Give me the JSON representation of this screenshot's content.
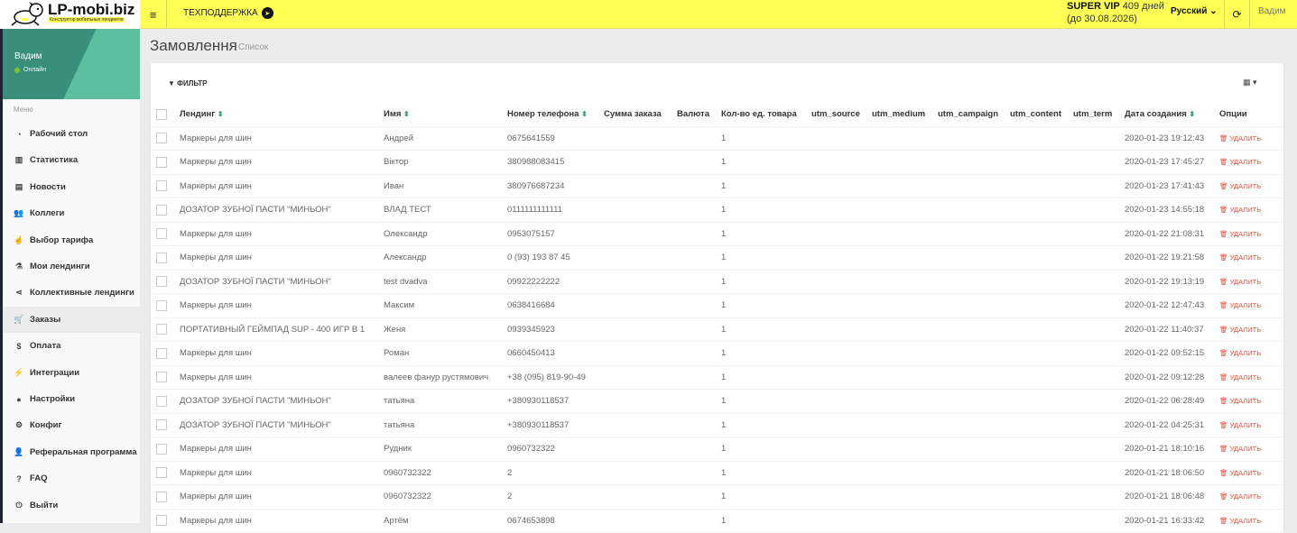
{
  "topbar": {
    "logo_title": "LP-mobi.biz",
    "logo_subtitle": "Конструктор мобильных лендингов",
    "support": "ТЕХПОДДЕРЖКА",
    "plan": "SUPER VIP",
    "days": "409 дней",
    "until": "(до 30.08.2026)",
    "language": "Русский",
    "user": "Вадим",
    "accent": "#ffff55"
  },
  "sidebar": {
    "user_name": "Вадим",
    "status": "Онлайн",
    "menu_label": "Меню",
    "items": [
      {
        "label": "Рабочий стол",
        "icon": "dashboard-icon"
      },
      {
        "label": "Статистика",
        "icon": "bar-chart-icon"
      },
      {
        "label": "Новости",
        "icon": "newspaper-icon"
      },
      {
        "label": "Коллеги",
        "icon": "users-icon"
      },
      {
        "label": "Выбор тарифа",
        "icon": "hand-pointer-icon"
      },
      {
        "label": "Мои лендинги",
        "icon": "flask-icon"
      },
      {
        "label": "Коллективные лендинги",
        "icon": "share-icon"
      },
      {
        "label": "Заказы",
        "icon": "cart-icon",
        "active": true
      },
      {
        "label": "Оплата",
        "icon": "dollar-icon"
      },
      {
        "label": "Интеграции",
        "icon": "plug-icon"
      },
      {
        "label": "Настройки",
        "icon": "user-icon"
      },
      {
        "label": "Конфиг",
        "icon": "cogs-icon"
      },
      {
        "label": "Реферальная программа",
        "icon": "user-plus-icon"
      },
      {
        "label": "FAQ",
        "icon": "question-icon"
      },
      {
        "label": "Выйти",
        "icon": "power-icon"
      }
    ]
  },
  "page": {
    "title": "Замовлення",
    "subtitle": "Список"
  },
  "card": {
    "filter": "ФИЛЬТР"
  },
  "table": {
    "headers": [
      "Лендинг",
      "Имя",
      "Номер телефона",
      "Сумма заказа",
      "Валюта",
      "Кол-во ед. товара",
      "utm_source",
      "utm_medium",
      "utm_campaign",
      "utm_content",
      "utm_term",
      "Дата создания",
      "Опции"
    ],
    "delete_label": "УДАЛИТЬ",
    "rows": [
      [
        "Маркеры для шин",
        "Андрей",
        "0675641559",
        "",
        "",
        "1",
        "",
        "",
        "",
        "",
        "",
        "2020-01-23 19:12:43"
      ],
      [
        "Маркеры для шин",
        "Віктор",
        "380988083415",
        "",
        "",
        "1",
        "",
        "",
        "",
        "",
        "",
        "2020-01-23 17:45:27"
      ],
      [
        "Маркеры для шин",
        "Иван",
        "380976687234",
        "",
        "",
        "1",
        "",
        "",
        "",
        "",
        "",
        "2020-01-23 17:41:43"
      ],
      [
        "ДОЗАТОР ЗУБНОЇ ПАСТИ \"МИНЬОН\"",
        "ВЛАД ТЕСТ",
        "0111111111111",
        "",
        "",
        "1",
        "",
        "",
        "",
        "",
        "",
        "2020-01-23 14:55:18"
      ],
      [
        "Маркеры для шин",
        "Олександр",
        "0953075157",
        "",
        "",
        "1",
        "",
        "",
        "",
        "",
        "",
        "2020-01-22 21:08:31"
      ],
      [
        "Маркеры для шин",
        "Александр",
        "0 (93) 193 87 45",
        "",
        "",
        "1",
        "",
        "",
        "",
        "",
        "",
        "2020-01-22 19:21:58"
      ],
      [
        "ДОЗАТОР ЗУБНОЇ ПАСТИ \"МИНЬОН\"",
        "test dvadva",
        "09922222222",
        "",
        "",
        "1",
        "",
        "",
        "",
        "",
        "",
        "2020-01-22 19:13:19"
      ],
      [
        "Маркеры для шин",
        "Максим",
        "0638416684",
        "",
        "",
        "1",
        "",
        "",
        "",
        "",
        "",
        "2020-01-22 12:47:43"
      ],
      [
        "ПОРТАТИВНЫЙ ГЕЙМПАД SUP - 400 ИГР В 1",
        "Женя",
        "0939345923",
        "",
        "",
        "1",
        "",
        "",
        "",
        "",
        "",
        "2020-01-22 11:40:37"
      ],
      [
        "Маркеры для шин",
        "Роман",
        "0660450413",
        "",
        "",
        "1",
        "",
        "",
        "",
        "",
        "",
        "2020-01-22 09:52:15"
      ],
      [
        "Маркеры для шин",
        "валеев фанур рустямович",
        "+38 (095) 819-90-49",
        "",
        "",
        "1",
        "",
        "",
        "",
        "",
        "",
        "2020-01-22 09:12:28"
      ],
      [
        "ДОЗАТОР ЗУБНОЇ ПАСТИ \"МИНЬОН\"",
        "татьяна",
        "+380930118537",
        "",
        "",
        "1",
        "",
        "",
        "",
        "",
        "",
        "2020-01-22 06:28:49"
      ],
      [
        "ДОЗАТОР ЗУБНОЇ ПАСТИ \"МИНЬОН\"",
        "татьяна",
        "+380930118537",
        "",
        "",
        "1",
        "",
        "",
        "",
        "",
        "",
        "2020-01-22 04:25:31"
      ],
      [
        "Маркеры для шин",
        "Рудник",
        "0960732322",
        "",
        "",
        "1",
        "",
        "",
        "",
        "",
        "",
        "2020-01-21 18:10:16"
      ],
      [
        "Маркеры для шин",
        "0960732322",
        "2",
        "",
        "",
        "1",
        "",
        "",
        "",
        "",
        "",
        "2020-01-21 18:06:50"
      ],
      [
        "Маркеры для шин",
        "0960732322",
        "2",
        "",
        "",
        "1",
        "",
        "",
        "",
        "",
        "",
        "2020-01-21 18:06:48"
      ],
      [
        "Маркеры для шин",
        "Артём",
        "0674653898",
        "",
        "",
        "1",
        "",
        "",
        "",
        "",
        "",
        "2020-01-21 16:33:42"
      ]
    ]
  }
}
